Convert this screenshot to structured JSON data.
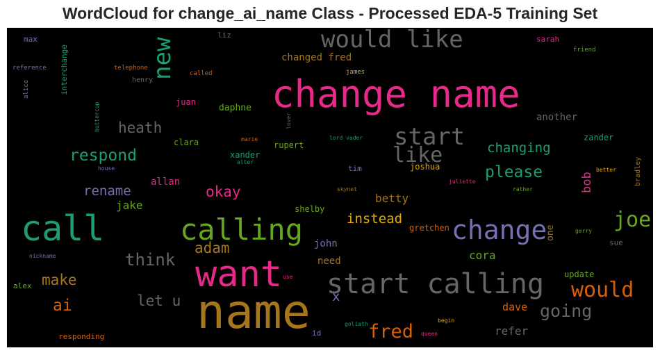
{
  "chart_data": {
    "type": "wordcloud",
    "title": "WordCloud for change_ai_name Class - Processed EDA-5 Training Set",
    "background": "#000000",
    "palette": {
      "teal": "#1b9e77",
      "orange": "#d95f02",
      "purple": "#7570b3",
      "magenta": "#e7298a",
      "green": "#66a61e",
      "gold": "#e6ab02",
      "brown": "#a6761d",
      "gray": "#666666"
    },
    "words": [
      {
        "text": "name",
        "weight": 100,
        "color": "brown",
        "orientation": "horizontal"
      },
      {
        "text": "change name",
        "weight": 78,
        "color": "magenta",
        "orientation": "horizontal"
      },
      {
        "text": "want",
        "weight": 75,
        "color": "magenta",
        "orientation": "horizontal"
      },
      {
        "text": "call",
        "weight": 72,
        "color": "teal",
        "orientation": "horizontal"
      },
      {
        "text": "calling",
        "weight": 60,
        "color": "green",
        "orientation": "horizontal"
      },
      {
        "text": "start calling",
        "weight": 58,
        "color": "gray",
        "orientation": "horizontal"
      },
      {
        "text": "change",
        "weight": 55,
        "color": "purple",
        "orientation": "horizontal"
      },
      {
        "text": "would like",
        "weight": 50,
        "color": "gray",
        "orientation": "horizontal"
      },
      {
        "text": "new",
        "weight": 50,
        "color": "teal",
        "orientation": "vertical"
      },
      {
        "text": "start",
        "weight": 47,
        "color": "gray",
        "orientation": "horizontal"
      },
      {
        "text": "joe",
        "weight": 45,
        "color": "green",
        "orientation": "horizontal"
      },
      {
        "text": "would",
        "weight": 43,
        "color": "orange",
        "orientation": "horizontal"
      },
      {
        "text": "like",
        "weight": 42,
        "color": "gray",
        "orientation": "horizontal"
      },
      {
        "text": "fred",
        "weight": 40,
        "color": "orange",
        "orientation": "horizontal"
      },
      {
        "text": "going",
        "weight": 37,
        "color": "gray",
        "orientation": "horizontal"
      },
      {
        "text": "think",
        "weight": 35,
        "color": "gray",
        "orientation": "horizontal"
      },
      {
        "text": "respond",
        "weight": 33,
        "color": "teal",
        "orientation": "horizontal"
      },
      {
        "text": "ai",
        "weight": 33,
        "color": "orange",
        "orientation": "horizontal"
      },
      {
        "text": "please",
        "weight": 33,
        "color": "teal",
        "orientation": "horizontal"
      },
      {
        "text": "heath",
        "weight": 30,
        "color": "gray",
        "orientation": "horizontal"
      },
      {
        "text": "adam",
        "weight": 30,
        "color": "brown",
        "orientation": "horizontal"
      },
      {
        "text": "make",
        "weight": 30,
        "color": "brown",
        "orientation": "horizontal"
      },
      {
        "text": "okay",
        "weight": 30,
        "color": "magenta",
        "orientation": "horizontal"
      },
      {
        "text": "let u",
        "weight": 30,
        "color": "gray",
        "orientation": "horizontal"
      },
      {
        "text": "changing",
        "weight": 28,
        "color": "teal",
        "orientation": "horizontal"
      },
      {
        "text": "instead",
        "weight": 28,
        "color": "gold",
        "orientation": "horizontal"
      },
      {
        "text": "rename",
        "weight": 27,
        "color": "purple",
        "orientation": "horizontal"
      },
      {
        "text": "x",
        "weight": 26,
        "color": "purple",
        "orientation": "horizontal"
      },
      {
        "text": "bob",
        "weight": 25,
        "color": "magenta",
        "orientation": "vertical"
      },
      {
        "text": "jake",
        "weight": 23,
        "color": "green",
        "orientation": "horizontal"
      },
      {
        "text": "betty",
        "weight": 23,
        "color": "brown",
        "orientation": "horizontal"
      },
      {
        "text": "cora",
        "weight": 23,
        "color": "green",
        "orientation": "horizontal"
      },
      {
        "text": "refer",
        "weight": 23,
        "color": "gray",
        "orientation": "horizontal"
      },
      {
        "text": "dave",
        "weight": 22,
        "color": "orange",
        "orientation": "horizontal"
      },
      {
        "text": "changed fred",
        "weight": 21,
        "color": "brown",
        "orientation": "horizontal"
      },
      {
        "text": "need",
        "weight": 21,
        "color": "brown",
        "orientation": "horizontal"
      },
      {
        "text": "allan",
        "weight": 20,
        "color": "magenta",
        "orientation": "horizontal"
      },
      {
        "text": "another",
        "weight": 20,
        "color": "gray",
        "orientation": "horizontal"
      },
      {
        "text": "john",
        "weight": 19,
        "color": "purple",
        "orientation": "horizontal"
      },
      {
        "text": "one",
        "weight": 19,
        "color": "brown",
        "orientation": "vertical"
      },
      {
        "text": "daphne",
        "weight": 18,
        "color": "green",
        "orientation": "horizontal"
      },
      {
        "text": "juan",
        "weight": 16,
        "color": "magenta",
        "orientation": "horizontal"
      },
      {
        "text": "zander",
        "weight": 16,
        "color": "teal",
        "orientation": "horizontal"
      },
      {
        "text": "shelby",
        "weight": 16,
        "color": "green",
        "orientation": "horizontal"
      },
      {
        "text": "gretchen",
        "weight": 16,
        "color": "orange",
        "orientation": "horizontal"
      },
      {
        "text": "joshua",
        "weight": 16,
        "color": "gold",
        "orientation": "horizontal"
      },
      {
        "text": "rupert",
        "weight": 16,
        "color": "green",
        "orientation": "horizontal"
      },
      {
        "text": "clara",
        "weight": 16,
        "color": "green",
        "orientation": "horizontal"
      },
      {
        "text": "xander",
        "weight": 16,
        "color": "teal",
        "orientation": "horizontal"
      },
      {
        "text": "update",
        "weight": 16,
        "color": "green",
        "orientation": "horizontal"
      },
      {
        "text": "tim",
        "weight": 15,
        "color": "purple",
        "orientation": "horizontal"
      },
      {
        "text": "interchange",
        "weight": 15,
        "color": "teal",
        "orientation": "vertical"
      },
      {
        "text": "alex",
        "weight": 15,
        "color": "green",
        "orientation": "horizontal"
      },
      {
        "text": "responding",
        "weight": 15,
        "color": "orange",
        "orientation": "horizontal"
      },
      {
        "text": "id",
        "weight": 15,
        "color": "purple",
        "orientation": "horizontal"
      },
      {
        "text": "max",
        "weight": 15,
        "color": "purple",
        "orientation": "horizontal"
      },
      {
        "text": "liz",
        "weight": 15,
        "color": "gray",
        "orientation": "horizontal"
      },
      {
        "text": "sarah",
        "weight": 15,
        "color": "magenta",
        "orientation": "horizontal"
      },
      {
        "text": "sue",
        "weight": 15,
        "color": "gray",
        "orientation": "horizontal"
      },
      {
        "text": "bradley",
        "weight": 14,
        "color": "brown",
        "orientation": "vertical"
      },
      {
        "text": "henry",
        "weight": 13,
        "color": "gray",
        "orientation": "horizontal"
      },
      {
        "text": "telephone",
        "weight": 13,
        "color": "orange",
        "orientation": "horizontal"
      },
      {
        "text": "reference",
        "weight": 13,
        "color": "purple",
        "orientation": "horizontal"
      },
      {
        "text": "called",
        "weight": 13,
        "color": "orange",
        "orientation": "horizontal"
      },
      {
        "text": "friend",
        "weight": 13,
        "color": "green",
        "orientation": "horizontal"
      },
      {
        "text": "james",
        "weight": 12,
        "color": "gold",
        "orientation": "horizontal"
      },
      {
        "text": "alice",
        "weight": 12,
        "color": "purple",
        "orientation": "vertical"
      },
      {
        "text": "buttercup",
        "weight": 12,
        "color": "teal",
        "orientation": "vertical"
      },
      {
        "text": "lover",
        "weight": 12,
        "color": "gray",
        "orientation": "vertical"
      },
      {
        "text": "marie",
        "weight": 12,
        "color": "orange",
        "orientation": "horizontal"
      },
      {
        "text": "lord vader",
        "weight": 12,
        "color": "teal",
        "orientation": "horizontal"
      },
      {
        "text": "alter",
        "weight": 12,
        "color": "teal",
        "orientation": "horizontal"
      },
      {
        "text": "house",
        "weight": 12,
        "color": "purple",
        "orientation": "horizontal"
      },
      {
        "text": "better",
        "weight": 12,
        "color": "gold",
        "orientation": "horizontal"
      },
      {
        "text": "skynet",
        "weight": 12,
        "color": "brown",
        "orientation": "horizontal"
      },
      {
        "text": "juliette",
        "weight": 12,
        "color": "magenta",
        "orientation": "horizontal"
      },
      {
        "text": "rather",
        "weight": 12,
        "color": "green",
        "orientation": "horizontal"
      },
      {
        "text": "gerry",
        "weight": 12,
        "color": "green",
        "orientation": "horizontal"
      },
      {
        "text": "nickname",
        "weight": 12,
        "color": "purple",
        "orientation": "horizontal"
      },
      {
        "text": "use",
        "weight": 12,
        "color": "magenta",
        "orientation": "horizontal"
      },
      {
        "text": "goliath",
        "weight": 12,
        "color": "teal",
        "orientation": "horizontal"
      },
      {
        "text": "begin",
        "weight": 12,
        "color": "gold",
        "orientation": "horizontal"
      },
      {
        "text": "queen",
        "weight": 12,
        "color": "magenta",
        "orientation": "horizontal"
      }
    ]
  }
}
